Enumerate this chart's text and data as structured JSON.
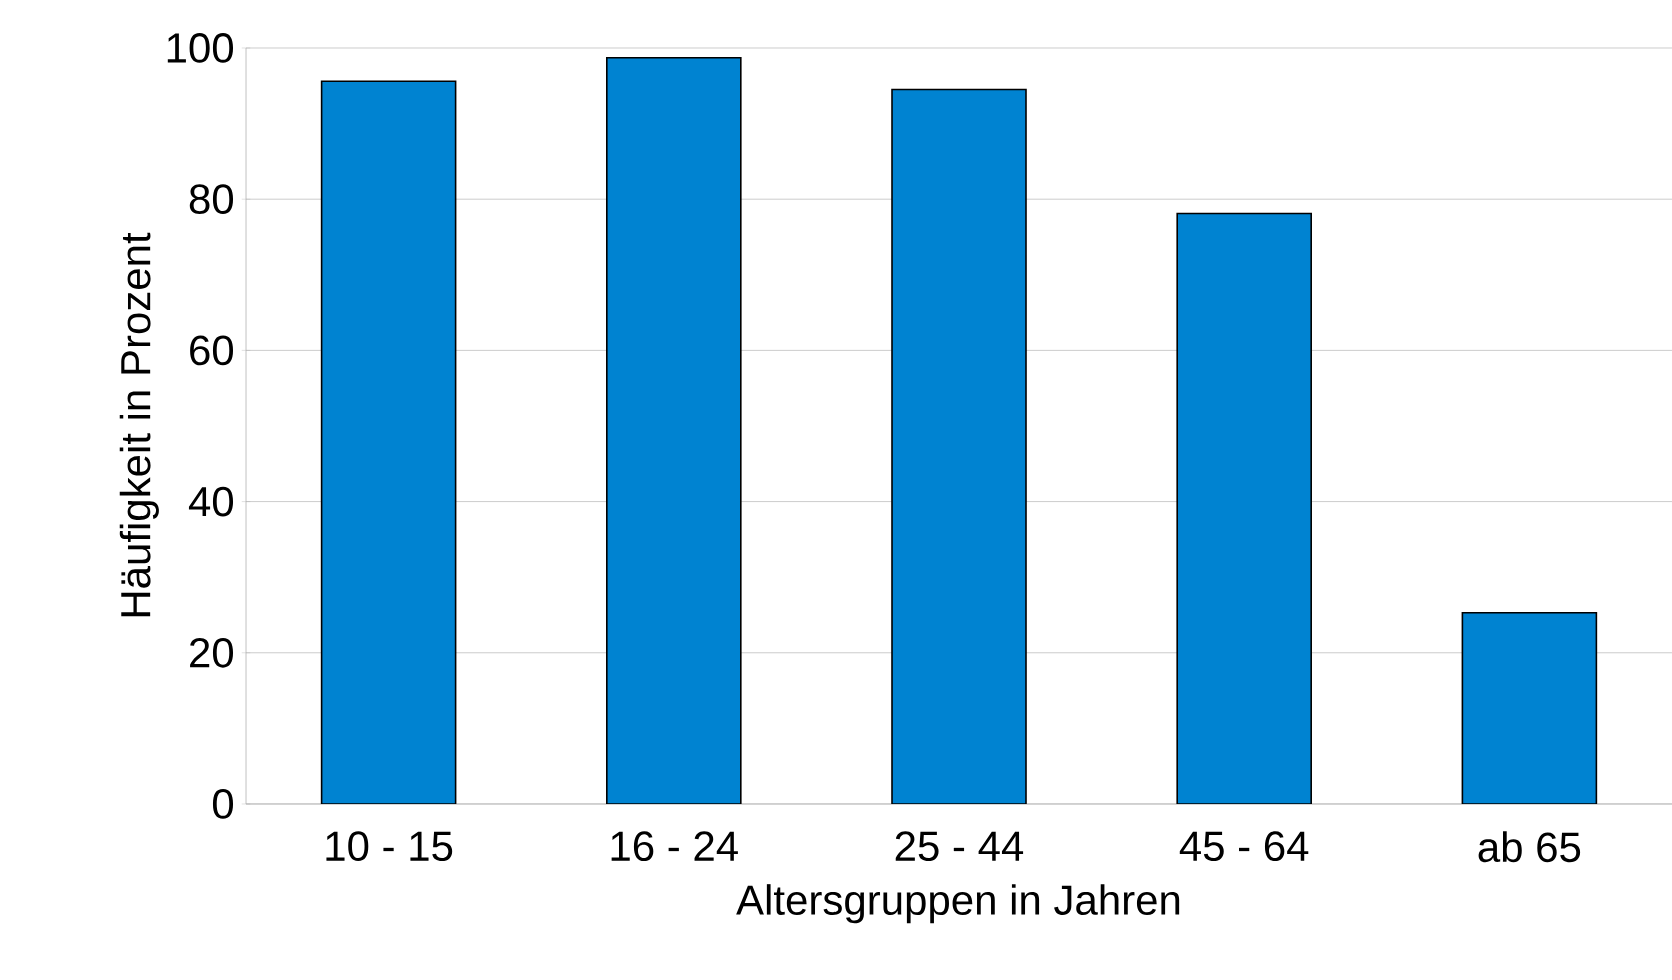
{
  "chart_data": {
    "type": "bar",
    "xlabel": "Altersgruppen in Jahren",
    "ylabel": "Häufigkeit in Prozent",
    "categories": [
      "10 - 15",
      "16 - 24",
      "25 - 44",
      "45 - 64",
      "ab 65"
    ],
    "values": [
      95.6,
      98.7,
      94.5,
      78.1,
      25.3
    ],
    "color": "#0083d1",
    "ylim": [
      0,
      100
    ],
    "yticks": [
      0,
      20,
      40,
      60,
      80,
      100
    ],
    "grid": "y"
  }
}
